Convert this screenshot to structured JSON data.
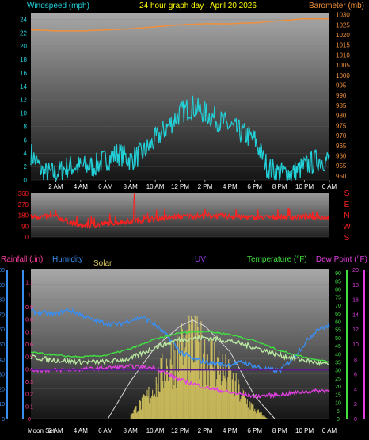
{
  "colors": {
    "wind": "#22d0d8",
    "barometer": "#f0903c",
    "direction": "#ff2020",
    "rain": "#ff40a0",
    "humidity": "#3a8ef0",
    "solar": "#d8c860",
    "uv": "#9a3af0",
    "temperature": "#40e040",
    "dewpoint": "#e040e0",
    "title": "#ffff00",
    "axis_text": "#ffffff"
  },
  "chart_data": [
    {
      "type": "line",
      "title": "24 hour graph day : April 20 2026",
      "ylabel": "Windspeed (mph)",
      "y2label": "Barometer (mb)",
      "x_ticks": [
        "2 AM",
        "4 AM",
        "6 AM",
        "8 AM",
        "10 AM",
        "12 PM",
        "2 PM",
        "4 PM",
        "6 PM",
        "8 PM",
        "10 PM",
        "0 AM"
      ],
      "ylim": [
        0,
        25
      ],
      "y_ticks": [
        0,
        2,
        4,
        6,
        8,
        10,
        12,
        14,
        16,
        18,
        20,
        22,
        24
      ],
      "y2lim": [
        948,
        1031
      ],
      "y2_ticks": [
        950,
        955,
        960,
        965,
        970,
        975,
        980,
        985,
        990,
        995,
        1000,
        1005,
        1010,
        1015,
        1020,
        1025,
        1030
      ],
      "series": [
        {
          "name": "Windspeed (mph)",
          "axis": "left",
          "hours": [
            0,
            1,
            2,
            3,
            4,
            5,
            6,
            7,
            8,
            9,
            10,
            11,
            12,
            13,
            14,
            15,
            16,
            17,
            18,
            19,
            20,
            21,
            22,
            23,
            24
          ],
          "values": [
            4,
            1,
            1,
            2,
            2,
            2,
            3,
            4,
            3,
            4,
            6,
            8,
            10,
            11,
            10,
            9,
            8,
            7,
            6,
            2,
            1,
            1,
            2,
            3,
            3
          ]
        },
        {
          "name": "Barometer (mb)",
          "axis": "right",
          "hours": [
            0,
            2,
            4,
            6,
            8,
            10,
            12,
            14,
            16,
            18,
            20,
            22,
            24
          ],
          "values": [
            1022.5,
            1022,
            1022,
            1022.5,
            1023,
            1024,
            1025,
            1025.5,
            1025.5,
            1026,
            1027,
            1028,
            1028
          ]
        }
      ]
    },
    {
      "type": "line",
      "y_ticks": [
        0,
        90,
        180,
        270,
        360
      ],
      "ylim": [
        0,
        360
      ],
      "compass_labels": [
        "S",
        "E",
        "N",
        "W",
        "S"
      ],
      "series": [
        {
          "name": "Wind direction",
          "hours": [
            0,
            2,
            4,
            6,
            8,
            10,
            12,
            14,
            16,
            18,
            20,
            22,
            24
          ],
          "values": [
            170,
            165,
            90,
            110,
            130,
            150,
            170,
            175,
            170,
            160,
            165,
            165,
            165
          ]
        }
      ]
    },
    {
      "type": "line",
      "labels": {
        "rain": "Rainfall (.in)",
        "humidity": "Humidity",
        "solar": "Solar",
        "uv": "UV",
        "temperature": "Temperature (°F)",
        "dewpoint": "Dew Point (°F)"
      },
      "x_ticks": [
        "Moon Set",
        "2 AM",
        "4 AM",
        "6 AM",
        "8 AM",
        "10 AM",
        "12 PM",
        "2 PM",
        "4 PM",
        "6 PM",
        "8 PM",
        "10 PM",
        "0 AM"
      ],
      "humidity_ticks": [
        0,
        10,
        20,
        30,
        40,
        50,
        60,
        70,
        80,
        90,
        100
      ],
      "rain_ticks": [
        "0",
        "0.1",
        "0.2",
        "0.3",
        "0.4",
        "0.5",
        "0.6",
        "0.7",
        "0.8",
        "0.9",
        "1",
        "1.1"
      ],
      "temp_ticks": [
        0,
        5,
        10,
        15,
        20,
        25,
        30,
        35,
        40,
        45,
        50,
        55,
        60,
        65,
        70,
        75,
        80,
        85,
        90
      ],
      "dew_ticks": [
        0,
        2,
        4,
        6,
        8,
        10,
        12,
        14,
        16,
        18,
        20
      ],
      "rain_lim": [
        0,
        1.2
      ],
      "temp_lim": [
        0,
        92
      ],
      "series": [
        {
          "name": "Humidity",
          "axis": "humidity",
          "hours": [
            0,
            1,
            2,
            3,
            4,
            5,
            6,
            7,
            8,
            9,
            10,
            11,
            12,
            13,
            14,
            15,
            16,
            17,
            18,
            19,
            20,
            21,
            22,
            23,
            24
          ],
          "values": [
            72,
            71,
            70,
            73,
            70,
            66,
            64,
            63,
            66,
            68,
            63,
            55,
            45,
            40,
            38,
            37,
            36,
            38,
            35,
            33,
            32,
            40,
            50,
            60,
            62
          ]
        },
        {
          "name": "Temperature (°F)",
          "axis": "temp",
          "hours": [
            0,
            2,
            4,
            6,
            8,
            10,
            12,
            14,
            16,
            18,
            20,
            22,
            24
          ],
          "values": [
            38,
            36,
            35,
            35,
            37,
            44,
            49,
            50,
            48,
            44,
            39,
            36,
            33
          ]
        },
        {
          "name": "Temperature high",
          "axis": "temp",
          "hours": [
            0,
            2,
            4,
            6,
            8,
            10,
            12,
            14,
            16,
            18,
            20,
            22,
            24
          ],
          "values": [
            41,
            39,
            38,
            39,
            43,
            49,
            53,
            54,
            52,
            48,
            42,
            38,
            35
          ]
        },
        {
          "name": "Dew Point (°F)",
          "axis": "dew",
          "hours": [
            0,
            2,
            4,
            6,
            8,
            10,
            12,
            14,
            16,
            18,
            20,
            22,
            24
          ],
          "values": [
            6.5,
            6.5,
            6.6,
            6.8,
            7.0,
            6.8,
            5.2,
            4.2,
            3.5,
            3.0,
            3.2,
            3.6,
            3.8
          ]
        },
        {
          "name": "UV",
          "axis": "temp",
          "hours": [
            0,
            6,
            7,
            8,
            9,
            10,
            11,
            12,
            13,
            14,
            15,
            16,
            17,
            18,
            19,
            24
          ],
          "values": [
            30,
            30,
            30,
            30,
            30,
            30,
            30,
            30,
            30,
            30,
            30,
            30,
            30,
            30,
            30,
            30
          ]
        },
        {
          "name": "Solar",
          "axis": "humidity",
          "hours": [
            8,
            9,
            10,
            11,
            12,
            13,
            14,
            15,
            16,
            17,
            18,
            19
          ],
          "values": [
            5,
            15,
            30,
            50,
            62,
            65,
            60,
            50,
            35,
            20,
            8,
            0
          ]
        },
        {
          "name": "Solar max",
          "axis": "humidity",
          "hours": [
            6.2,
            8,
            10,
            12,
            13,
            14,
            16,
            18,
            19.6
          ],
          "values": [
            0,
            25,
            48,
            62,
            66,
            62,
            45,
            15,
            0
          ]
        }
      ]
    }
  ]
}
